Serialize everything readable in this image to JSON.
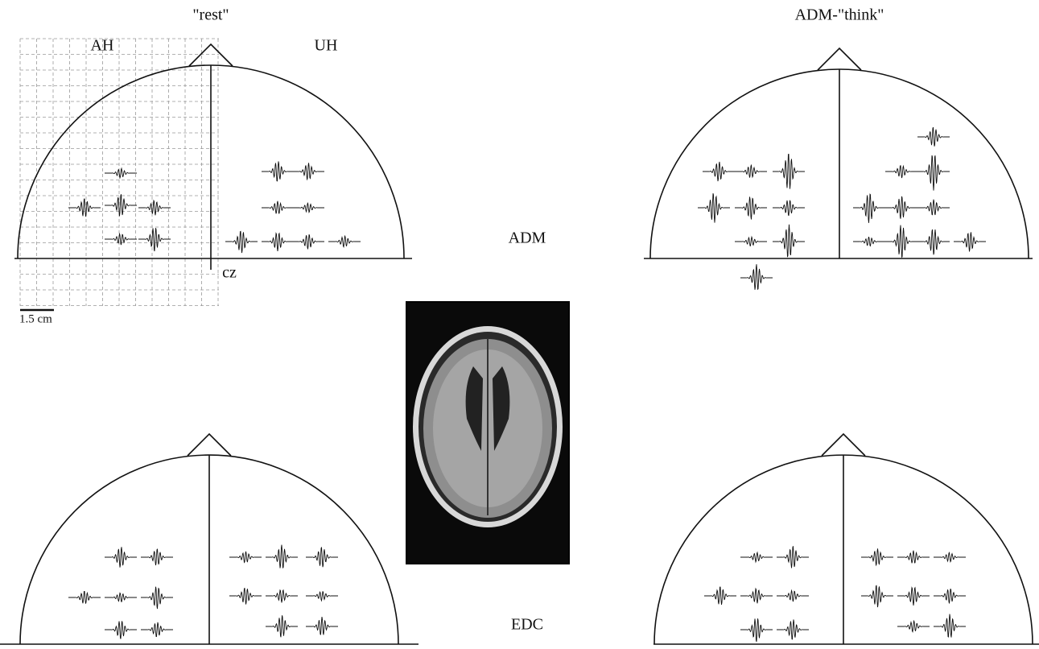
{
  "titles": {
    "rest": "\"rest\"",
    "think": "ADM-\"think\""
  },
  "labels": {
    "ah": "AH",
    "uh": "UH",
    "cz": "cz",
    "scale": "1.5 cm",
    "adm": "ADM",
    "edc": "EDC"
  }
}
